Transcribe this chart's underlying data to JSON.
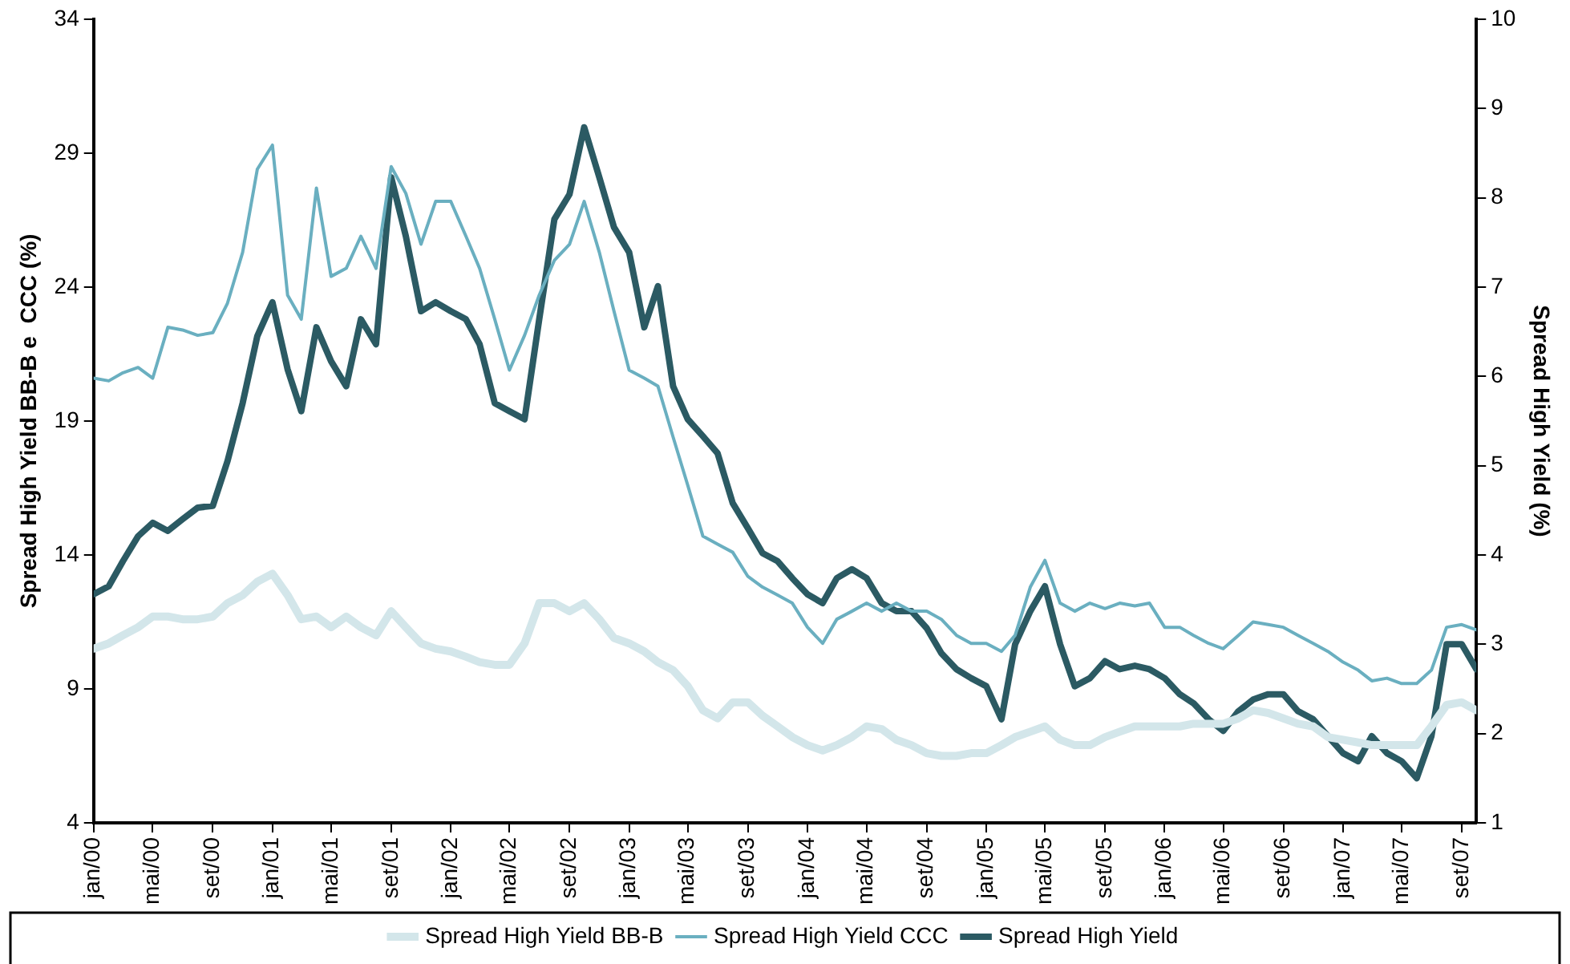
{
  "chart_data": {
    "type": "line",
    "ylabel": "Spread High Yield BB-B e  CCC (%)",
    "y2label": "Spread High Yield (%)",
    "x": [
      "2000-01",
      "2000-02",
      "2000-03",
      "2000-04",
      "2000-05",
      "2000-06",
      "2000-07",
      "2000-08",
      "2000-09",
      "2000-10",
      "2000-11",
      "2000-12",
      "2001-01",
      "2001-02",
      "2001-03",
      "2001-04",
      "2001-05",
      "2001-06",
      "2001-07",
      "2001-08",
      "2001-09",
      "2001-10",
      "2001-11",
      "2001-12",
      "2002-01",
      "2002-02",
      "2002-03",
      "2002-04",
      "2002-05",
      "2002-06",
      "2002-07",
      "2002-08",
      "2002-09",
      "2002-10",
      "2002-11",
      "2002-12",
      "2003-01",
      "2003-02",
      "2003-03",
      "2003-04",
      "2003-05",
      "2003-06",
      "2003-07",
      "2003-08",
      "2003-09",
      "2003-10",
      "2003-11",
      "2003-12",
      "2004-01",
      "2004-02",
      "2004-03",
      "2004-04",
      "2004-05",
      "2004-06",
      "2004-07",
      "2004-08",
      "2004-09",
      "2004-10",
      "2004-11",
      "2004-12",
      "2005-01",
      "2005-02",
      "2005-03",
      "2005-04",
      "2005-05",
      "2005-06",
      "2005-07",
      "2005-08",
      "2005-09",
      "2005-10",
      "2005-11",
      "2005-12",
      "2006-01",
      "2006-02",
      "2006-03",
      "2006-04",
      "2006-05",
      "2006-06",
      "2006-07",
      "2006-08",
      "2006-09",
      "2006-10",
      "2006-11",
      "2006-12",
      "2007-01",
      "2007-02",
      "2007-03",
      "2007-04",
      "2007-05",
      "2007-06",
      "2007-07",
      "2007-08",
      "2007-09",
      "2007-10"
    ],
    "series": [
      {
        "name": "Spread High Yield BB-B",
        "color": "#d3e6ea",
        "values": [
          10.5,
          10.7,
          11.0,
          11.3,
          11.7,
          11.7,
          11.6,
          11.6,
          11.7,
          12.2,
          12.5,
          13.0,
          13.3,
          12.5,
          11.6,
          11.7,
          11.3,
          11.7,
          11.3,
          11.0,
          11.9,
          11.3,
          10.7,
          10.5,
          10.4,
          10.2,
          10.0,
          9.9,
          9.9,
          10.7,
          12.2,
          12.2,
          11.9,
          12.2,
          11.6,
          10.9,
          10.7,
          10.4,
          10.0,
          9.7,
          9.1,
          8.2,
          7.9,
          8.5,
          8.5,
          8.0,
          7.6,
          7.2,
          6.9,
          6.7,
          6.9,
          7.2,
          7.6,
          7.5,
          7.1,
          6.9,
          6.6,
          6.5,
          6.5,
          6.6,
          6.6,
          6.9,
          7.2,
          7.4,
          7.6,
          7.1,
          6.9,
          6.9,
          7.2,
          7.4,
          7.6,
          7.6,
          7.6,
          7.6,
          7.7,
          7.7,
          7.7,
          7.9,
          8.2,
          8.1,
          7.9,
          7.7,
          7.6,
          7.2,
          7.1,
          7.0,
          6.9,
          6.9,
          6.9,
          6.9,
          7.6,
          8.4,
          8.5,
          8.2
        ]
      },
      {
        "name": "Spread High Yield CCC",
        "color": "#6aafc0",
        "values": [
          20.6,
          20.5,
          20.8,
          21.0,
          20.6,
          22.5,
          22.4,
          22.2,
          22.3,
          23.4,
          25.3,
          28.4,
          29.3,
          23.7,
          22.8,
          27.7,
          24.4,
          24.7,
          25.9,
          24.7,
          28.5,
          27.5,
          25.6,
          27.2,
          27.2,
          25.9,
          24.7,
          22.8,
          20.9,
          22.2,
          23.7,
          25.0,
          25.6,
          27.2,
          25.3,
          23.1,
          20.9,
          20.6,
          20.3,
          18.4,
          16.6,
          14.7,
          14.4,
          14.1,
          13.2,
          12.8,
          12.5,
          12.2,
          11.3,
          10.7,
          11.6,
          11.9,
          12.2,
          11.9,
          12.2,
          11.9,
          11.9,
          11.6,
          11.0,
          10.7,
          10.7,
          10.4,
          11.0,
          12.8,
          13.8,
          12.2,
          11.9,
          12.2,
          12.0,
          12.2,
          12.1,
          12.2,
          11.3,
          11.3,
          11.0,
          10.7,
          10.5,
          11.0,
          11.5,
          11.4,
          11.3,
          11.0,
          10.7,
          10.4,
          10.0,
          9.7,
          9.3,
          9.4,
          9.2,
          9.2,
          9.7,
          11.3,
          11.4,
          11.2
        ]
      },
      {
        "name": "Spread High Yield",
        "color": "#2b5a63",
        "axis": "y2",
        "values": [
          3.56,
          3.65,
          3.93,
          4.21,
          4.36,
          4.27,
          4.4,
          4.53,
          4.55,
          5.05,
          5.7,
          6.45,
          6.83,
          6.08,
          5.61,
          6.55,
          6.17,
          5.89,
          6.64,
          6.36,
          8.23,
          7.57,
          6.73,
          6.83,
          6.73,
          6.64,
          6.36,
          5.7,
          5.61,
          5.52,
          6.64,
          7.76,
          8.04,
          8.79,
          8.23,
          7.67,
          7.39,
          6.55,
          7.01,
          5.89,
          5.52,
          5.33,
          5.14,
          4.58,
          4.3,
          4.02,
          3.93,
          3.74,
          3.56,
          3.46,
          3.74,
          3.84,
          3.74,
          3.46,
          3.37,
          3.37,
          3.18,
          2.9,
          2.72,
          2.62,
          2.53,
          2.16,
          3.0,
          3.37,
          3.65,
          3.0,
          2.53,
          2.62,
          2.81,
          2.72,
          2.76,
          2.72,
          2.62,
          2.44,
          2.34,
          2.16,
          2.03,
          2.25,
          2.38,
          2.44,
          2.44,
          2.25,
          2.16,
          1.97,
          1.78,
          1.69,
          1.97,
          1.78,
          1.69,
          1.5,
          1.97,
          3.0,
          3.0,
          2.72
        ]
      }
    ],
    "xlim": [
      "2000-01",
      "2007-10"
    ],
    "xticks": [
      {
        "value": "2000-01",
        "label": "jan/00"
      },
      {
        "value": "2000-05",
        "label": "mai/00"
      },
      {
        "value": "2000-09",
        "label": "set/00"
      },
      {
        "value": "2001-01",
        "label": "jan/01"
      },
      {
        "value": "2001-05",
        "label": "mai/01"
      },
      {
        "value": "2001-09",
        "label": "set/01"
      },
      {
        "value": "2002-01",
        "label": "jan/02"
      },
      {
        "value": "2002-05",
        "label": "mai/02"
      },
      {
        "value": "2002-09",
        "label": "set/02"
      },
      {
        "value": "2003-01",
        "label": "jan/03"
      },
      {
        "value": "2003-05",
        "label": "mai/03"
      },
      {
        "value": "2003-09",
        "label": "set/03"
      },
      {
        "value": "2004-01",
        "label": "jan/04"
      },
      {
        "value": "2004-05",
        "label": "mai/04"
      },
      {
        "value": "2004-09",
        "label": "set/04"
      },
      {
        "value": "2005-01",
        "label": "jan/05"
      },
      {
        "value": "2005-05",
        "label": "mai/05"
      },
      {
        "value": "2005-09",
        "label": "set/05"
      },
      {
        "value": "2006-01",
        "label": "jan/06"
      },
      {
        "value": "2006-05",
        "label": "mai/06"
      },
      {
        "value": "2006-09",
        "label": "set/06"
      },
      {
        "value": "2007-01",
        "label": "jan/07"
      },
      {
        "value": "2007-05",
        "label": "mai/07"
      },
      {
        "value": "2007-09",
        "label": "set/07"
      }
    ],
    "ylim": [
      4,
      34
    ],
    "yticks": [
      4,
      9,
      14,
      19,
      24,
      29,
      34
    ],
    "y2lim": [
      1,
      10
    ],
    "y2ticks": [
      1,
      2,
      3,
      4,
      5,
      6,
      7,
      8,
      9,
      10
    ],
    "grid": false,
    "legend": "bottom",
    "marker": "none",
    "line_style": "solid"
  }
}
